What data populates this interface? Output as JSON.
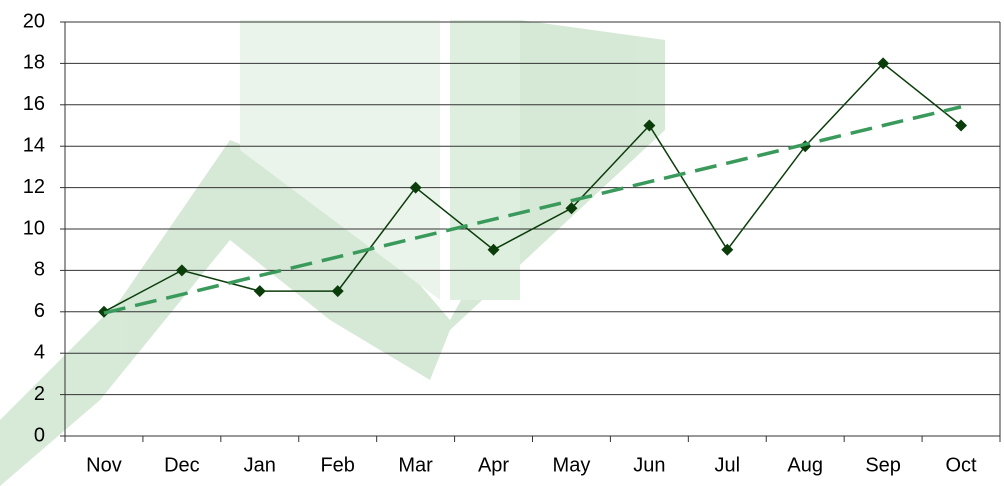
{
  "chart_data": {
    "type": "line",
    "categories": [
      "Nov",
      "Dec",
      "Jan",
      "Feb",
      "Mar",
      "Apr",
      "May",
      "Jun",
      "Jul",
      "Aug",
      "Sep",
      "Oct"
    ],
    "series": [
      {
        "color": "#0b3d0b",
        "marker": "diamond",
        "dashed": false,
        "values": [
          6,
          8,
          7,
          7,
          12,
          9,
          11,
          15,
          9,
          14,
          18,
          15
        ]
      },
      {
        "color": "#3a9a5c",
        "marker": "none",
        "dashed": true,
        "values": [
          5.94,
          6.84,
          7.75,
          8.65,
          9.56,
          10.47,
          11.37,
          12.28,
          13.18,
          14.09,
          15.0,
          15.9
        ]
      }
    ],
    "ylim": [
      0,
      20
    ],
    "yticks": [
      0,
      2,
      4,
      6,
      8,
      10,
      12,
      14,
      16,
      18,
      20
    ],
    "grid": true
  }
}
